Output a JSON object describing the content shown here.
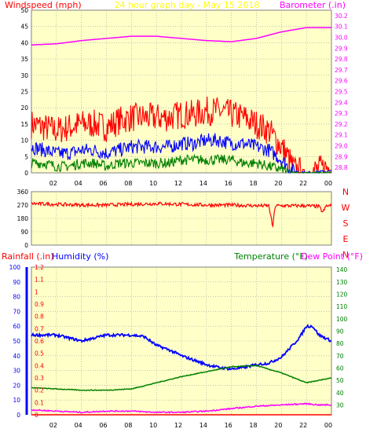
{
  "header": {
    "left_title": "Windspeed (mph)",
    "center_title": "24 hour graph day - May 15 2018",
    "right_title": "Barometer (.in)"
  },
  "compass": [
    "N",
    "W",
    "S",
    "E",
    "N"
  ],
  "lower_header": {
    "rainfall_label": "Rainfall (.in)",
    "humidity_label": "Humidity (%)",
    "temperature_label": "Temperature (°F)",
    "dewpoint_label": "Dew Point (°F)"
  },
  "colors": {
    "background": "#ffffff",
    "plot_bg": "#ffffc8",
    "grid": "#a0a0a0",
    "axis_text": "#000000",
    "wind_gust": "#ff0000",
    "wind_avg": "#0000ff",
    "wind_low": "#008000",
    "barometer": "#ff00ff",
    "direction": "#ff0000",
    "humidity": "#0000ff",
    "temperature": "#008000",
    "dewpoint": "#ff00ff",
    "rainfall": "#ff0000",
    "header_text": "#ffff00",
    "title_red": "#ff0000",
    "title_magenta": "#ff00ff",
    "title_blue": "#0000ff",
    "title_green": "#008000",
    "compass": "#ff0000",
    "rain_axis": "#0000ff"
  },
  "chart_data": [
    {
      "type": "line",
      "name": "wind-barometer",
      "x_ticks": [
        "02",
        "04",
        "06",
        "08",
        "10",
        "12",
        "14",
        "16",
        "18",
        "20",
        "22",
        "00"
      ],
      "left_ticks": [
        0,
        5,
        10,
        15,
        20,
        25,
        30,
        35,
        40,
        45,
        50
      ],
      "left_ylim": [
        0,
        50
      ],
      "right_ticks": [
        28.8,
        28.9,
        29,
        29.1,
        29.2,
        29.3,
        29.4,
        29.5,
        29.6,
        29.7,
        29.8,
        29.9,
        30,
        30.1,
        30.2
      ],
      "right_ylim": [
        28.75,
        30.25
      ],
      "xlim": [
        0,
        24
      ],
      "series": [
        {
          "key": "gust",
          "color_key": "wind_gust",
          "x": [
            0,
            1,
            2,
            3,
            4,
            5,
            6,
            7,
            8,
            9,
            10,
            11,
            12,
            13,
            14,
            15,
            16,
            17,
            18,
            19,
            20,
            20.5,
            21,
            22,
            23,
            24
          ],
          "y": [
            15,
            14,
            13,
            14,
            15,
            15,
            14,
            16,
            17,
            17,
            17,
            17,
            18,
            18,
            19,
            19,
            18,
            17,
            15,
            13,
            8,
            5,
            1,
            0,
            1,
            2
          ]
        },
        {
          "key": "avg",
          "color_key": "wind_avg",
          "x": [
            0,
            1,
            2,
            3,
            4,
            5,
            6,
            7,
            8,
            9,
            10,
            11,
            12,
            13,
            14,
            15,
            16,
            17,
            18,
            19,
            20,
            20.5,
            21,
            22,
            23,
            24
          ],
          "y": [
            8,
            7,
            6,
            6,
            7,
            7,
            6,
            7,
            8,
            8,
            8,
            8,
            9,
            9,
            10,
            10,
            9,
            9,
            8,
            7,
            4,
            2,
            0.5,
            0,
            0.3,
            0.5
          ]
        },
        {
          "key": "low",
          "color_key": "wind_low",
          "x": [
            0,
            1,
            2,
            3,
            4,
            5,
            6,
            7,
            8,
            9,
            10,
            11,
            12,
            13,
            14,
            15,
            16,
            17,
            18,
            19,
            20,
            20.5,
            21,
            22,
            23,
            24
          ],
          "y": [
            3,
            3,
            2,
            2,
            3,
            3,
            2,
            3,
            3,
            3,
            3,
            3,
            4,
            4,
            4,
            4,
            4,
            3,
            3,
            2,
            1,
            0.5,
            0,
            0,
            0,
            0
          ]
        },
        {
          "key": "barometer",
          "color_key": "barometer",
          "x": [
            0,
            2,
            4,
            6,
            8,
            10,
            12,
            14,
            16,
            18,
            20,
            22,
            24
          ],
          "y": [
            29.93,
            29.94,
            29.97,
            29.99,
            30.01,
            30.01,
            29.99,
            29.97,
            29.96,
            29.99,
            30.05,
            30.09,
            30.09
          ]
        }
      ]
    },
    {
      "type": "line",
      "name": "wind-direction",
      "left_ticks": [
        0,
        90,
        180,
        270,
        360
      ],
      "ylim": [
        0,
        360
      ],
      "xlim": [
        0,
        24
      ],
      "series": [
        {
          "key": "direction",
          "color_key": "direction",
          "x": [
            0,
            2,
            4,
            6,
            8,
            10,
            12,
            14,
            16,
            18,
            19,
            19.3,
            19.5,
            20,
            21,
            22,
            23,
            23.3,
            23.6,
            24
          ],
          "y": [
            280,
            275,
            270,
            270,
            275,
            280,
            275,
            270,
            270,
            265,
            265,
            120,
            265,
            265,
            265,
            265,
            260,
            220,
            265,
            265
          ]
        }
      ]
    },
    {
      "type": "line",
      "name": "humidity-temperature-rain",
      "x_ticks": [
        "02",
        "04",
        "06",
        "08",
        "10",
        "12",
        "14",
        "16",
        "18",
        "20",
        "22",
        "00"
      ],
      "left_ticks": [
        0,
        10,
        20,
        30,
        40,
        50,
        60,
        70,
        80,
        90,
        100
      ],
      "left_ylim": [
        0,
        100
      ],
      "rain_ticks": [
        0,
        0.1,
        0.2,
        0.3,
        0.4,
        0.5,
        0.6,
        0.7,
        0.8,
        0.9,
        1,
        1.1,
        1.2
      ],
      "rain_ylim": [
        0,
        1.2
      ],
      "right_ticks": [
        30,
        40,
        50,
        60,
        70,
        80,
        90,
        100,
        110,
        120,
        130,
        140
      ],
      "right_ylim": [
        22,
        142
      ],
      "xlim": [
        0,
        24
      ],
      "series": [
        {
          "key": "humidity",
          "color_key": "humidity",
          "x": [
            0,
            1,
            2,
            3,
            4,
            5,
            6,
            7,
            8,
            9,
            10,
            11,
            12,
            13,
            14,
            15,
            16,
            17,
            18,
            19,
            20,
            21,
            21.5,
            22,
            22.5,
            23,
            24
          ],
          "y": [
            54,
            54,
            54,
            52,
            50,
            52,
            54,
            54,
            54,
            53,
            47,
            44,
            40,
            37,
            34,
            32,
            31,
            32,
            34,
            35,
            39,
            48,
            53,
            60,
            60,
            54,
            50
          ]
        },
        {
          "key": "temperature",
          "color_key": "temperature",
          "x": [
            0,
            2,
            4,
            6,
            8,
            10,
            12,
            14,
            16,
            18,
            20,
            22,
            23,
            24
          ],
          "y": [
            44,
            43,
            42,
            42,
            43,
            48,
            53,
            57,
            61,
            62,
            56,
            48,
            50,
            52
          ]
        },
        {
          "key": "dewpoint",
          "color_key": "dewpoint",
          "x": [
            0,
            2,
            4,
            6,
            8,
            10,
            12,
            14,
            16,
            18,
            20,
            22,
            23,
            24
          ],
          "y": [
            26,
            25,
            24,
            25,
            25,
            24,
            24,
            25,
            27,
            29,
            30,
            31,
            30,
            30
          ]
        },
        {
          "key": "rainfall",
          "color_key": "rainfall",
          "x": [
            0,
            24
          ],
          "y": [
            0,
            0
          ]
        }
      ]
    }
  ]
}
